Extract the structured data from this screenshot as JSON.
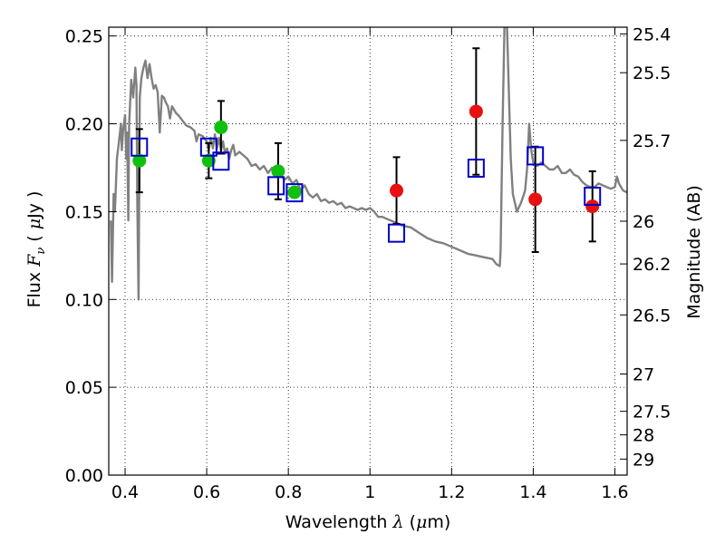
{
  "chart_data": {
    "type": "scatter",
    "title": "",
    "xlabel": "Wavelength  λ (μm)",
    "ylabel": "Flux  F_ν ( μJy )",
    "y2label": "Magnitude (AB)",
    "xlim": [
      0.36,
      1.63
    ],
    "ylim": [
      0.0,
      0.255
    ],
    "grid": true,
    "grid_style": "dotted",
    "xticks": [
      {
        "v": 0.4,
        "label": "0.4"
      },
      {
        "v": 0.6,
        "label": "0.6"
      },
      {
        "v": 0.8,
        "label": "0.8"
      },
      {
        "v": 1.0,
        "label": "1"
      },
      {
        "v": 1.2,
        "label": "1.2"
      },
      {
        "v": 1.4,
        "label": "1.4"
      },
      {
        "v": 1.6,
        "label": "1.6"
      }
    ],
    "yticks": [
      {
        "v": 0.0,
        "label": "0.00"
      },
      {
        "v": 0.05,
        "label": "0.05"
      },
      {
        "v": 0.1,
        "label": "0.10"
      },
      {
        "v": 0.15,
        "label": "0.15"
      },
      {
        "v": 0.2,
        "label": "0.20"
      },
      {
        "v": 0.25,
        "label": "0.25"
      }
    ],
    "y2ticks": [
      {
        "label": "25.4",
        "mag": 25.4
      },
      {
        "label": "25.5",
        "mag": 25.5
      },
      {
        "label": "25.7",
        "mag": 25.7
      },
      {
        "label": "26",
        "mag": 26.0
      },
      {
        "label": "26.2",
        "mag": 26.2
      },
      {
        "label": "26.5",
        "mag": 26.5
      },
      {
        "label": "27",
        "mag": 27.0
      },
      {
        "label": "27.5",
        "mag": 27.5
      },
      {
        "label": "28",
        "mag": 28.0
      },
      {
        "label": "29",
        "mag": 29.0
      }
    ],
    "series": [
      {
        "kind": "line",
        "color": "#808080",
        "points": [
          [
            0.365,
            0.145
          ],
          [
            0.368,
            0.11
          ],
          [
            0.372,
            0.16
          ],
          [
            0.375,
            0.15
          ],
          [
            0.38,
            0.18
          ],
          [
            0.385,
            0.19
          ],
          [
            0.39,
            0.2
          ],
          [
            0.392,
            0.185
          ],
          [
            0.395,
            0.196
          ],
          [
            0.4,
            0.205
          ],
          [
            0.403,
            0.18
          ],
          [
            0.405,
            0.195
          ],
          [
            0.408,
            0.145
          ],
          [
            0.41,
            0.2
          ],
          [
            0.415,
            0.225
          ],
          [
            0.42,
            0.215
          ],
          [
            0.425,
            0.232
          ],
          [
            0.428,
            0.222
          ],
          [
            0.43,
            0.155
          ],
          [
            0.433,
            0.1
          ],
          [
            0.436,
            0.215
          ],
          [
            0.44,
            0.226
          ],
          [
            0.445,
            0.232
          ],
          [
            0.45,
            0.236
          ],
          [
            0.455,
            0.226
          ],
          [
            0.46,
            0.234
          ],
          [
            0.465,
            0.226
          ],
          [
            0.47,
            0.22
          ],
          [
            0.475,
            0.222
          ],
          [
            0.48,
            0.218
          ],
          [
            0.485,
            0.195
          ],
          [
            0.49,
            0.216
          ],
          [
            0.495,
            0.215
          ],
          [
            0.5,
            0.212
          ],
          [
            0.505,
            0.21
          ],
          [
            0.51,
            0.203
          ],
          [
            0.515,
            0.21
          ],
          [
            0.52,
            0.208
          ],
          [
            0.525,
            0.206
          ],
          [
            0.53,
            0.205
          ],
          [
            0.54,
            0.202
          ],
          [
            0.55,
            0.199
          ],
          [
            0.56,
            0.198
          ],
          [
            0.57,
            0.196
          ],
          [
            0.575,
            0.19
          ],
          [
            0.58,
            0.194
          ],
          [
            0.59,
            0.193
          ],
          [
            0.6,
            0.19
          ],
          [
            0.605,
            0.185
          ],
          [
            0.61,
            0.192
          ],
          [
            0.615,
            0.186
          ],
          [
            0.62,
            0.194
          ],
          [
            0.625,
            0.186
          ],
          [
            0.63,
            0.192
          ],
          [
            0.635,
            0.185
          ],
          [
            0.64,
            0.19
          ],
          [
            0.645,
            0.183
          ],
          [
            0.65,
            0.186
          ],
          [
            0.655,
            0.18
          ],
          [
            0.66,
            0.185
          ],
          [
            0.665,
            0.188
          ],
          [
            0.67,
            0.182
          ],
          [
            0.68,
            0.184
          ],
          [
            0.69,
            0.182
          ],
          [
            0.7,
            0.18
          ],
          [
            0.71,
            0.176
          ],
          [
            0.72,
            0.177
          ],
          [
            0.73,
            0.174
          ],
          [
            0.74,
            0.176
          ],
          [
            0.75,
            0.172
          ],
          [
            0.76,
            0.175
          ],
          [
            0.77,
            0.17
          ],
          [
            0.78,
            0.172
          ],
          [
            0.79,
            0.168
          ],
          [
            0.8,
            0.17
          ],
          [
            0.81,
            0.166
          ],
          [
            0.82,
            0.168
          ],
          [
            0.83,
            0.162
          ],
          [
            0.84,
            0.165
          ],
          [
            0.85,
            0.16
          ],
          [
            0.86,
            0.158
          ],
          [
            0.87,
            0.16
          ],
          [
            0.88,
            0.156
          ],
          [
            0.89,
            0.157
          ],
          [
            0.9,
            0.155
          ],
          [
            0.91,
            0.156
          ],
          [
            0.92,
            0.154
          ],
          [
            0.93,
            0.155
          ],
          [
            0.94,
            0.152
          ],
          [
            0.95,
            0.153
          ],
          [
            0.96,
            0.152
          ],
          [
            0.97,
            0.151
          ],
          [
            0.98,
            0.152
          ],
          [
            0.99,
            0.151
          ],
          [
            1.0,
            0.152
          ],
          [
            1.01,
            0.15
          ],
          [
            1.02,
            0.147
          ],
          [
            1.03,
            0.147
          ],
          [
            1.04,
            0.146
          ],
          [
            1.06,
            0.144
          ],
          [
            1.08,
            0.142
          ],
          [
            1.1,
            0.141
          ],
          [
            1.12,
            0.138
          ],
          [
            1.14,
            0.135
          ],
          [
            1.16,
            0.133
          ],
          [
            1.18,
            0.132
          ],
          [
            1.2,
            0.13
          ],
          [
            1.22,
            0.128
          ],
          [
            1.24,
            0.126
          ],
          [
            1.26,
            0.125
          ],
          [
            1.28,
            0.124
          ],
          [
            1.3,
            0.123
          ],
          [
            1.31,
            0.12
          ],
          [
            1.318,
            0.119
          ],
          [
            1.32,
            0.128
          ],
          [
            1.325,
            0.2
          ],
          [
            1.33,
            0.262
          ],
          [
            1.335,
            0.262
          ],
          [
            1.34,
            0.22
          ],
          [
            1.345,
            0.18
          ],
          [
            1.35,
            0.16
          ],
          [
            1.36,
            0.15
          ],
          [
            1.37,
            0.155
          ],
          [
            1.38,
            0.162
          ],
          [
            1.385,
            0.175
          ],
          [
            1.39,
            0.2
          ],
          [
            1.395,
            0.185
          ],
          [
            1.4,
            0.178
          ],
          [
            1.41,
            0.176
          ],
          [
            1.42,
            0.178
          ],
          [
            1.43,
            0.176
          ],
          [
            1.44,
            0.174
          ],
          [
            1.45,
            0.174
          ],
          [
            1.46,
            0.176
          ],
          [
            1.47,
            0.172
          ],
          [
            1.48,
            0.172
          ],
          [
            1.49,
            0.174
          ],
          [
            1.5,
            0.171
          ],
          [
            1.51,
            0.17
          ],
          [
            1.52,
            0.167
          ],
          [
            1.53,
            0.165
          ],
          [
            1.54,
            0.164
          ],
          [
            1.55,
            0.164
          ],
          [
            1.56,
            0.166
          ],
          [
            1.57,
            0.165
          ],
          [
            1.58,
            0.164
          ],
          [
            1.59,
            0.163
          ],
          [
            1.6,
            0.164
          ],
          [
            1.605,
            0.17
          ],
          [
            1.61,
            0.166
          ],
          [
            1.62,
            0.162
          ],
          [
            1.63,
            0.161
          ]
        ]
      },
      {
        "kind": "points",
        "marker": "circle",
        "color": "#10c010",
        "points": [
          {
            "x": 0.435,
            "y": 0.179,
            "err": 0.018
          },
          {
            "x": 0.605,
            "y": 0.179,
            "err": 0.01
          },
          {
            "x": 0.635,
            "y": 0.198,
            "err": 0.015
          },
          {
            "x": 0.775,
            "y": 0.173,
            "err": 0.016
          },
          {
            "x": 0.815,
            "y": 0.161,
            "err": null
          }
        ]
      },
      {
        "kind": "points",
        "marker": "circle",
        "color": "#e81010",
        "points": [
          {
            "x": 1.065,
            "y": 0.162,
            "err": 0.019
          },
          {
            "x": 1.26,
            "y": 0.207,
            "err": 0.036
          },
          {
            "x": 1.405,
            "y": 0.157,
            "err": 0.03
          },
          {
            "x": 1.545,
            "y": 0.153,
            "err": 0.02
          }
        ]
      },
      {
        "kind": "points",
        "marker": "open-square",
        "color": "#0000cc",
        "points": [
          {
            "x": 0.435,
            "y": 0.187
          },
          {
            "x": 0.605,
            "y": 0.187
          },
          {
            "x": 0.635,
            "y": 0.179
          },
          {
            "x": 0.77,
            "y": 0.165
          },
          {
            "x": 0.815,
            "y": 0.161
          },
          {
            "x": 1.065,
            "y": 0.138
          },
          {
            "x": 1.26,
            "y": 0.175
          },
          {
            "x": 1.405,
            "y": 0.182
          },
          {
            "x": 1.545,
            "y": 0.159
          }
        ]
      }
    ]
  }
}
